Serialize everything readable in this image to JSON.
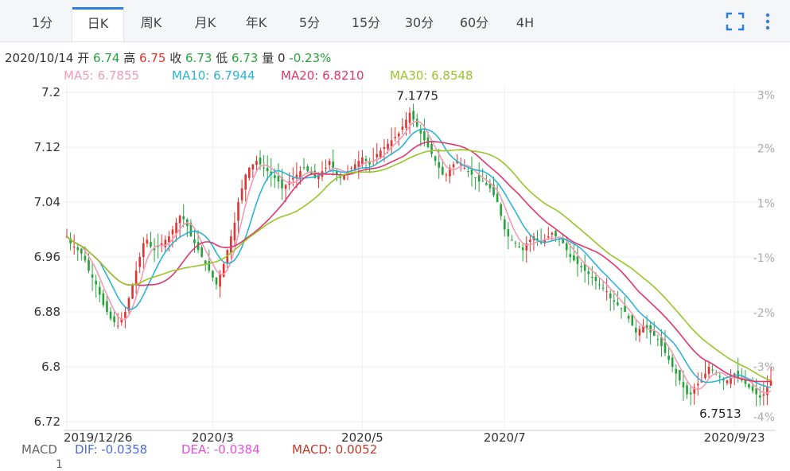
{
  "tabs": [
    {
      "label": "1分",
      "active": false
    },
    {
      "label": "日K",
      "active": true
    },
    {
      "label": "周K",
      "active": false
    },
    {
      "label": "月K",
      "active": false
    },
    {
      "label": "年K",
      "active": false
    },
    {
      "label": "5分",
      "active": false
    },
    {
      "label": "15分",
      "active": false
    },
    {
      "label": "30分",
      "active": false
    },
    {
      "label": "60分",
      "active": false
    },
    {
      "label": "4H",
      "active": false
    }
  ],
  "toolbar": {
    "fullscreen_icon": "fullscreen-icon",
    "more_icon": "more-vertical-icon",
    "icon_color": "#2f7ddb"
  },
  "quote": {
    "date": "2020/10/14",
    "open_label": "开",
    "open": "6.74",
    "high_label": "高",
    "high": "6.75",
    "close_label": "收",
    "close": "6.73",
    "low_label": "低",
    "low": "6.73",
    "volume_label": "量",
    "volume": "0",
    "change": "-0.23%"
  },
  "ma": {
    "ma5": "MA5: 6.7855",
    "ma10": "MA10: 6.7944",
    "ma20": "MA20: 6.8210",
    "ma30": "MA30: 6.8548"
  },
  "macd": {
    "label": "MACD",
    "dif": "DIF: -0.0358",
    "dea": "DEA: -0.0384",
    "macd": "MACD: 0.0052",
    "axis_tick": "1"
  },
  "colors": {
    "up": "#e0322f",
    "down": "#24a33a",
    "ma5": "#f59ab6",
    "ma10": "#2bb4d6",
    "ma20": "#e2356a",
    "ma30": "#9ac42a",
    "dif": "#4d6bd8",
    "dea": "#e54fe0",
    "macd": "#c0392b"
  },
  "chart_data": {
    "type": "candlestick",
    "ylim": [
      6.72,
      7.2
    ],
    "y_ticks": [
      "7.2",
      "7.12",
      "7.04",
      "6.96",
      "6.88",
      "6.8",
      "6.72"
    ],
    "y_tick_values": [
      7.2,
      7.12,
      7.04,
      6.96,
      6.88,
      6.8,
      6.72
    ],
    "pct_ticks": [
      "3%",
      "2%",
      "1%",
      "-1%",
      "-2%",
      "-3%",
      "-4%"
    ],
    "pct_tick_values": [
      7.196,
      7.118,
      7.038,
      6.959,
      6.879,
      6.8,
      6.727
    ],
    "x_labels": [
      {
        "label": "2019/12/26",
        "index": 0
      },
      {
        "label": "2020/3",
        "index": 40
      },
      {
        "label": "2020/5",
        "index": 81
      },
      {
        "label": "2020/7",
        "index": 120
      },
      {
        "label": "2020/9/23",
        "index": 183
      }
    ],
    "max_annotation": {
      "label": "7.1775",
      "index": 97,
      "value": 7.1775
    },
    "min_annotation": {
      "label": "6.7513",
      "index": 180,
      "value": 6.7513
    },
    "closes": [
      6.99,
      6.98,
      6.975,
      6.97,
      6.965,
      6.955,
      6.94,
      6.93,
      6.92,
      6.905,
      6.89,
      6.88,
      6.87,
      6.865,
      6.86,
      6.87,
      6.88,
      6.9,
      6.92,
      6.94,
      6.96,
      6.98,
      6.985,
      6.975,
      6.97,
      6.975,
      6.98,
      6.985,
      6.99,
      7.0,
      7.01,
      7.02,
      7.015,
      7.005,
      6.99,
      6.98,
      6.97,
      6.96,
      6.95,
      6.94,
      6.93,
      6.92,
      6.935,
      6.95,
      6.97,
      6.99,
      7.01,
      7.04,
      7.06,
      7.08,
      7.09,
      7.095,
      7.1,
      7.095,
      7.09,
      7.085,
      7.08,
      7.075,
      7.07,
      7.06,
      7.065,
      7.07,
      7.075,
      7.08,
      7.085,
      7.09,
      7.085,
      7.08,
      7.075,
      7.08,
      7.085,
      7.09,
      7.1,
      7.09,
      7.08,
      7.075,
      7.08,
      7.085,
      7.09,
      7.095,
      7.1,
      7.105,
      7.1,
      7.095,
      7.1,
      7.11,
      7.115,
      7.12,
      7.125,
      7.13,
      7.135,
      7.14,
      7.15,
      7.16,
      7.17,
      7.16,
      7.15,
      7.14,
      7.13,
      7.12,
      7.11,
      7.1,
      7.09,
      7.08,
      7.08,
      7.09,
      7.095,
      7.1,
      7.095,
      7.09,
      7.085,
      7.08,
      7.075,
      7.07,
      7.07,
      7.065,
      7.06,
      7.05,
      7.04,
      7.02,
      7.0,
      6.99,
      6.985,
      6.98,
      6.975,
      6.97,
      6.98,
      6.985,
      6.99,
      6.985,
      6.98,
      6.985,
      6.99,
      6.995,
      6.99,
      6.985,
      6.98,
      6.97,
      6.96,
      6.955,
      6.95,
      6.945,
      6.94,
      6.935,
      6.93,
      6.925,
      6.92,
      6.915,
      6.91,
      6.9,
      6.895,
      6.89,
      6.885,
      6.88,
      6.87,
      6.86,
      6.85,
      6.855,
      6.86,
      6.855,
      6.85,
      6.845,
      6.84,
      6.83,
      6.82,
      6.81,
      6.8,
      6.79,
      6.78,
      6.77,
      6.76,
      6.76,
      6.77,
      6.775,
      6.78,
      6.79,
      6.8,
      6.795,
      6.79,
      6.785,
      6.78,
      6.78,
      6.785,
      6.79,
      6.785,
      6.78,
      6.775,
      6.77,
      6.765,
      6.76,
      6.755,
      6.76,
      6.77,
      6.78
    ]
  }
}
